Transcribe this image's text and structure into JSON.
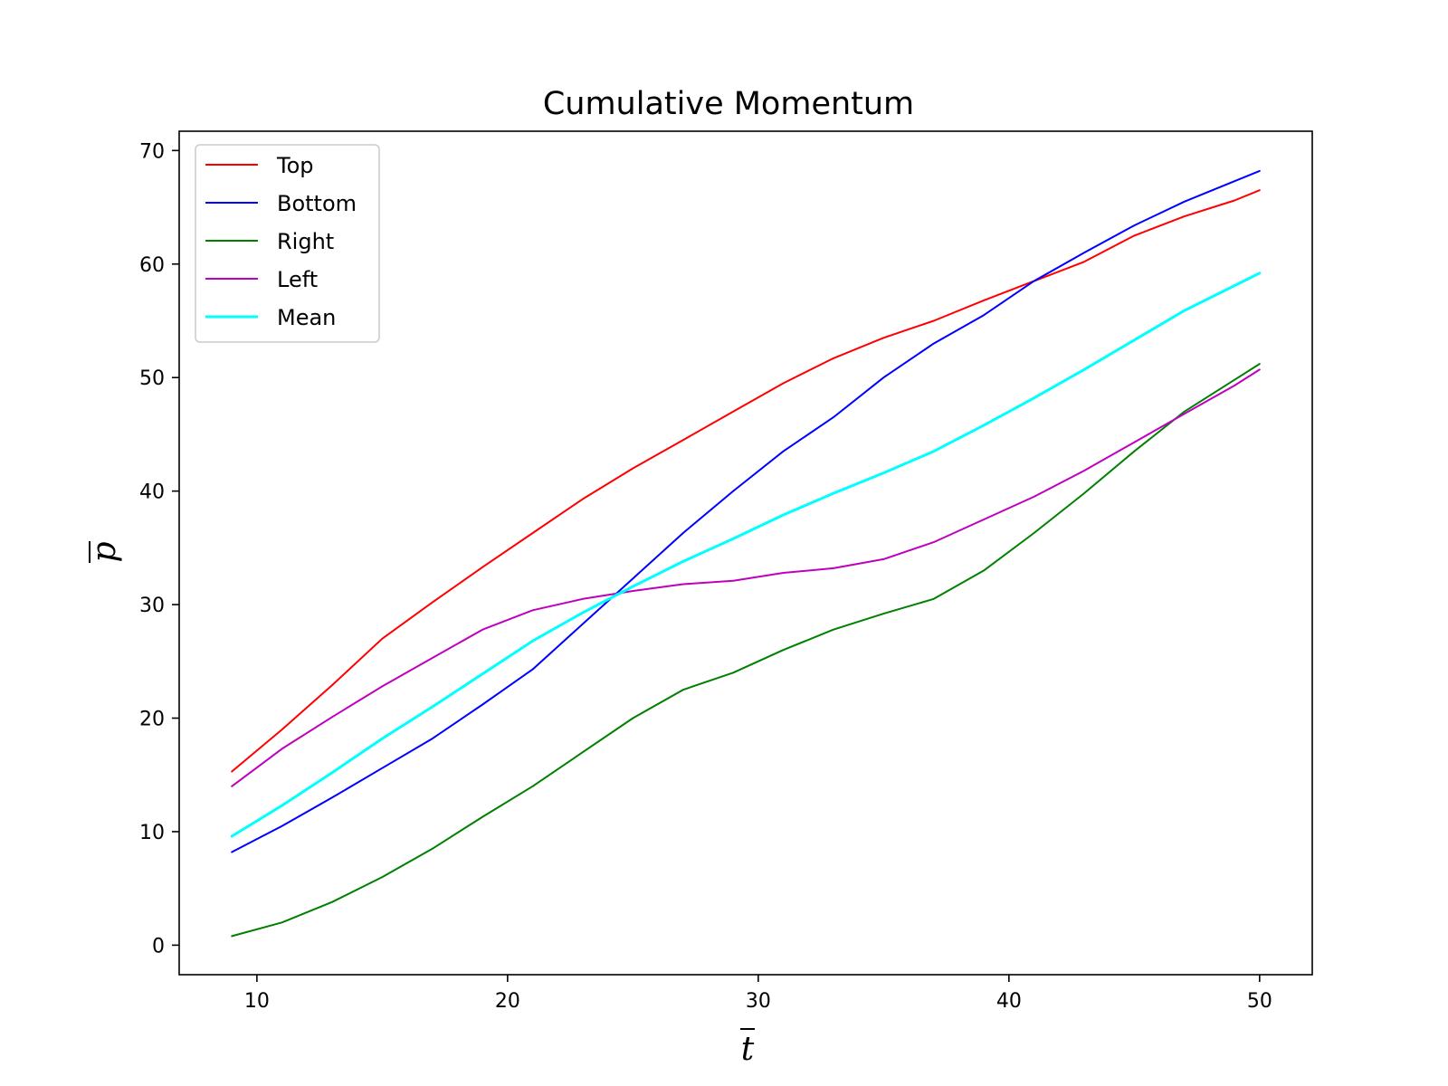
{
  "chart_data": {
    "type": "line",
    "title": "Cumulative Momentum",
    "xlabel": "t",
    "ylabel": "p",
    "xlim": [
      6.9,
      52.1
    ],
    "ylim": [
      -2.6,
      71.7
    ],
    "xticks": [
      10,
      20,
      30,
      40,
      50
    ],
    "yticks": [
      0,
      10,
      20,
      30,
      40,
      50,
      60,
      70
    ],
    "grid": false,
    "legend": "top-left",
    "x": [
      9,
      11,
      13,
      15,
      17,
      19,
      21,
      23,
      25,
      27,
      29,
      31,
      33,
      35,
      37,
      39,
      41,
      43,
      45,
      47,
      49,
      50
    ],
    "series": [
      {
        "name": "Top",
        "color": "#ff0000",
        "width": 2,
        "values": [
          15.3,
          19.0,
          22.9,
          27.0,
          30.2,
          33.3,
          36.3,
          39.3,
          42.0,
          44.5,
          47.0,
          49.5,
          51.7,
          53.5,
          55.0,
          56.8,
          58.5,
          60.2,
          62.5,
          64.2,
          65.6,
          66.5
        ]
      },
      {
        "name": "Bottom",
        "color": "#0000ff",
        "width": 2,
        "values": [
          8.2,
          10.5,
          13.0,
          15.6,
          18.2,
          21.2,
          24.3,
          28.3,
          32.3,
          36.3,
          40.0,
          43.5,
          46.5,
          50.0,
          53.0,
          55.5,
          58.5,
          61.0,
          63.4,
          65.5,
          67.3,
          68.2
        ]
      },
      {
        "name": "Right",
        "color": "#008000",
        "width": 2,
        "values": [
          0.8,
          2.0,
          3.8,
          6.0,
          8.5,
          11.3,
          14.0,
          17.0,
          20.0,
          22.5,
          24.0,
          26.0,
          27.8,
          29.2,
          30.5,
          33.0,
          36.3,
          39.8,
          43.5,
          47.0,
          49.8,
          51.2
        ]
      },
      {
        "name": "Left",
        "color": "#bf00bf",
        "width": 2,
        "values": [
          14.0,
          17.3,
          20.1,
          22.8,
          25.3,
          27.8,
          29.5,
          30.5,
          31.2,
          31.8,
          32.1,
          32.8,
          33.2,
          34.0,
          35.5,
          37.5,
          39.5,
          41.8,
          44.3,
          46.8,
          49.3,
          50.7
        ]
      },
      {
        "name": "Mean",
        "color": "#00ffff",
        "width": 3,
        "values": [
          9.6,
          12.3,
          15.2,
          18.2,
          21.0,
          23.9,
          26.8,
          29.3,
          31.6,
          33.8,
          35.8,
          37.9,
          39.8,
          41.6,
          43.5,
          45.8,
          48.2,
          50.7,
          53.3,
          55.9,
          58.1,
          59.2
        ]
      }
    ]
  }
}
